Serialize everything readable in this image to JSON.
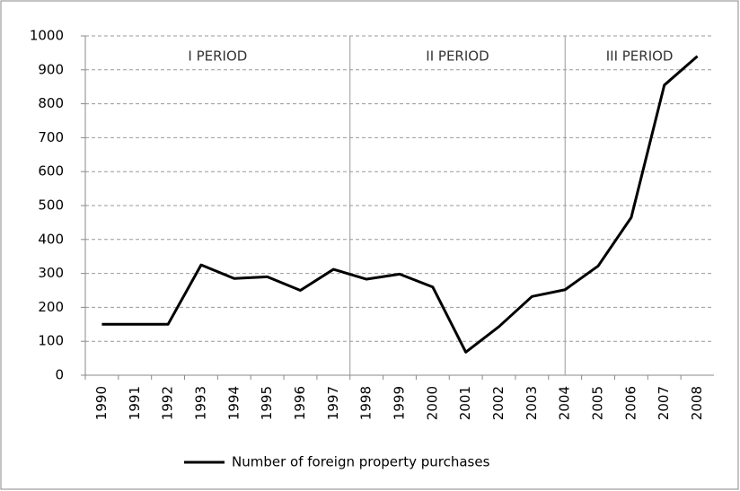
{
  "chart_data": {
    "type": "line",
    "categories": [
      "1990",
      "1991",
      "1992",
      "1993",
      "1994",
      "1995",
      "1996",
      "1997",
      "1998",
      "1999",
      "2000",
      "2001",
      "2002",
      "2003",
      "2004",
      "2005",
      "2006",
      "2007",
      "2008"
    ],
    "series": [
      {
        "name": "Number of foreign property purchases",
        "color": "#000000",
        "values": [
          150,
          150,
          150,
          325,
          285,
          290,
          250,
          312,
          283,
          298,
          260,
          68,
          143,
          232,
          252,
          322,
          465,
          855,
          940
        ]
      }
    ],
    "ylim": [
      0,
      1000
    ],
    "yticks": [
      0,
      100,
      200,
      300,
      400,
      500,
      600,
      700,
      800,
      900,
      1000
    ],
    "grid": true,
    "annotations": [
      "I PERIOD",
      "II PERIOD",
      "III PERIOD"
    ],
    "legend": "bottom"
  }
}
